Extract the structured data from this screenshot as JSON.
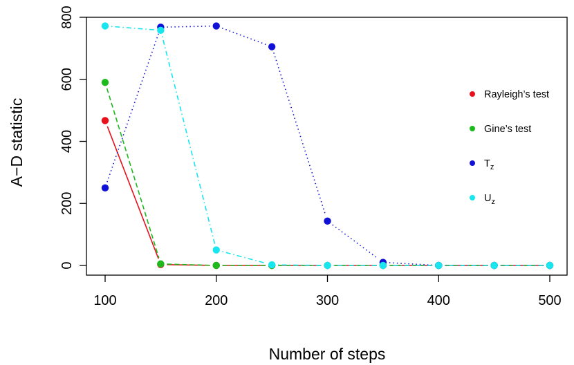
{
  "chart_data": {
    "type": "line",
    "title": "",
    "xlabel": "Number of steps",
    "ylabel": "A−D statistic",
    "x": [
      100,
      150,
      200,
      250,
      300,
      350,
      400,
      450,
      500
    ],
    "xlim": [
      100,
      500
    ],
    "ylim": [
      0,
      800
    ],
    "xticks": [
      "100",
      "200",
      "300",
      "400",
      "500"
    ],
    "yticks": [
      "0",
      "200",
      "400",
      "600",
      "800"
    ],
    "grid": false,
    "legend": {
      "position": "right"
    },
    "series": [
      {
        "name": "Rayleigh’s test",
        "name_main": "Rayleigh’s test",
        "name_sub": "",
        "color": "#e8101a",
        "dash": "solid",
        "values": [
          467,
          3,
          0,
          0,
          0,
          0,
          0,
          0,
          0
        ]
      },
      {
        "name": "Gine’s test",
        "name_main": "Gine’s test",
        "name_sub": "",
        "color": "#1cba1c",
        "dash": "dashed",
        "values": [
          590,
          5,
          0,
          0,
          0,
          0,
          0,
          0,
          0
        ]
      },
      {
        "name": "Tz",
        "name_main": "T",
        "name_sub": "z",
        "color": "#1010d6",
        "dash": "dotted",
        "values": [
          250,
          768,
          772,
          705,
          143,
          10,
          0,
          0,
          0
        ]
      },
      {
        "name": "Uz",
        "name_main": "U",
        "name_sub": "z",
        "color": "#18e6ee",
        "dash": "dotdash",
        "values": [
          772,
          758,
          50,
          2,
          0,
          0,
          0,
          0,
          0
        ]
      }
    ]
  }
}
